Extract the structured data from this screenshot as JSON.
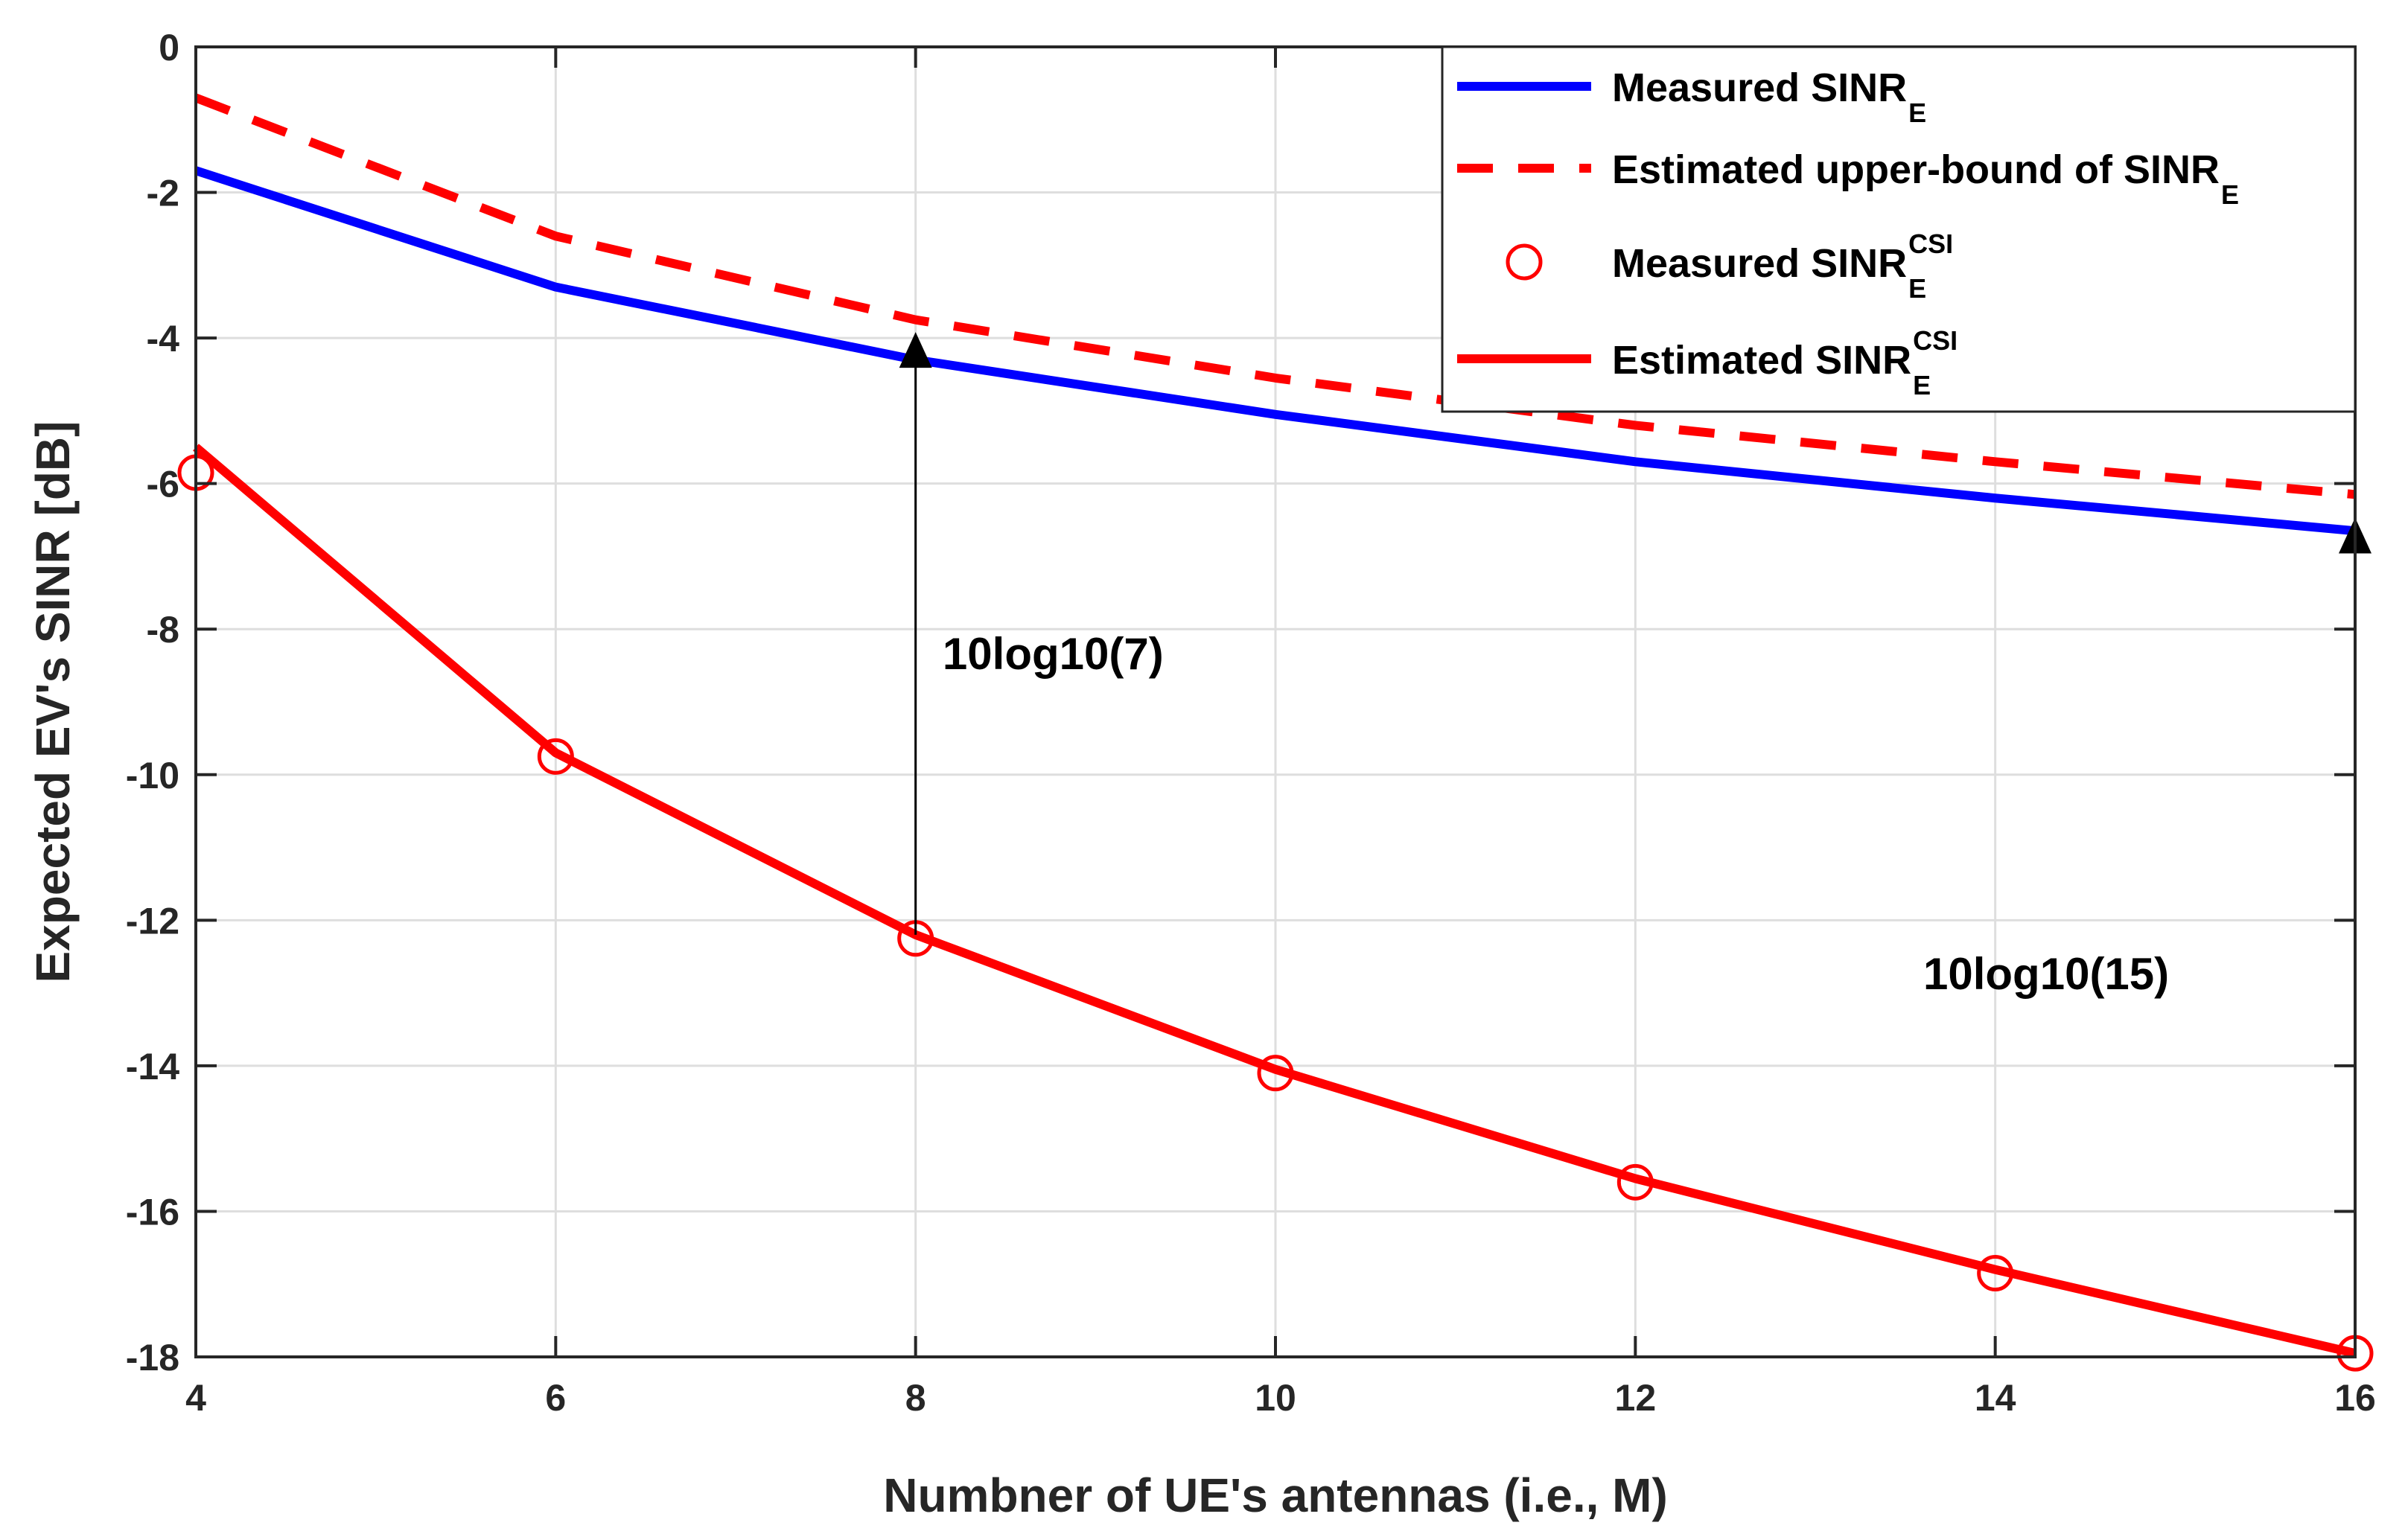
{
  "chart_data": {
    "type": "line",
    "title": "",
    "xlabel": "Numbner of UE's antennas (i.e., M)",
    "ylabel": "Expected EV's SINR [dB]",
    "xlim": [
      4,
      16
    ],
    "ylim": [
      -18,
      0
    ],
    "xticks": [
      4,
      6,
      8,
      10,
      12,
      14,
      16
    ],
    "yticks": [
      0,
      -2,
      -4,
      -6,
      -8,
      -10,
      -12,
      -14,
      -16,
      -18
    ],
    "grid": true,
    "legend_position": "top-right",
    "x": [
      4,
      6,
      8,
      10,
      12,
      14,
      16
    ],
    "series": [
      {
        "name": "Measured SINR_E",
        "label_main": "Measured SINR",
        "label_sub": "E",
        "label_sup": "",
        "style": "solid",
        "color": "#0000ff",
        "values": [
          -1.7,
          -3.3,
          -4.3,
          -5.05,
          -5.7,
          -6.2,
          -6.65
        ]
      },
      {
        "name": "Estimated upper-bound of SINR_E",
        "label_main": "Estimated upper-bound of SINR",
        "label_sub": "E",
        "label_sup": "",
        "style": "dashed",
        "color": "#ff0000",
        "values": [
          -0.7,
          -2.6,
          -3.75,
          -4.55,
          -5.2,
          -5.7,
          -6.15
        ]
      },
      {
        "name": "Measured SINR_E^CSI",
        "label_main": "Measured SINR",
        "label_sub": "E",
        "label_sup": "CSI",
        "style": "markers",
        "color": "#ff0000",
        "values": [
          -5.85,
          -9.75,
          -12.25,
          -14.1,
          -15.6,
          -16.85,
          -17.95
        ]
      },
      {
        "name": "Estimated SINR_E^CSI",
        "label_main": "Estimated SINR",
        "label_sub": "E",
        "label_sup": "CSI",
        "style": "solid",
        "color": "#ff0000",
        "values": [
          -5.5,
          -9.7,
          -12.2,
          -14.05,
          -15.55,
          -16.8,
          -17.95
        ]
      }
    ],
    "annotations": [
      {
        "text": "10log10(7)",
        "x": 8,
        "y_from": -12.2,
        "y_to": -4.0,
        "text_x": 8.15,
        "text_y": -8.55
      },
      {
        "text": "10log10(15)",
        "x": 16,
        "y_from": -17.95,
        "y_to": -6.55,
        "text_x": 13.6,
        "text_y": -12.95
      }
    ]
  }
}
